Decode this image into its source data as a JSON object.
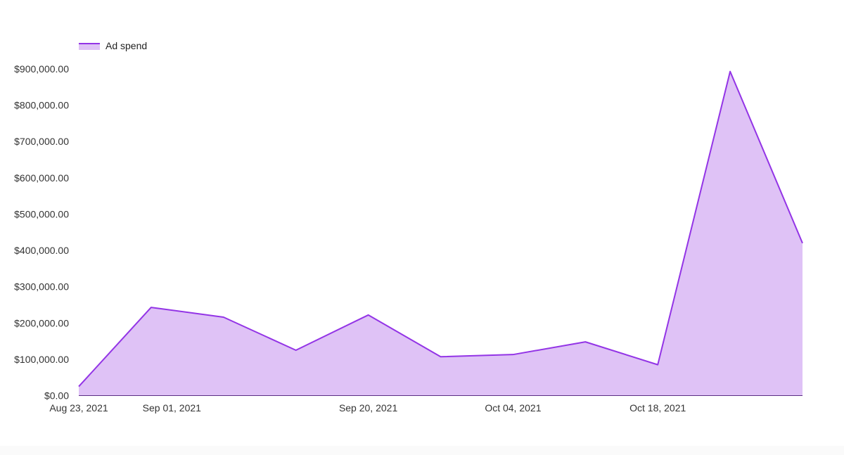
{
  "chart_data": {
    "type": "area",
    "series": [
      {
        "name": "Ad spend",
        "x": [
          "2021-08-23",
          "2021-08-30",
          "2021-09-06",
          "2021-09-13",
          "2021-09-20",
          "2021-09-27",
          "2021-10-04",
          "2021-10-11",
          "2021-10-18",
          "2021-10-25",
          "2021-11-01"
        ],
        "values": [
          25000,
          243000,
          216000,
          125000,
          222000,
          107000,
          113000,
          148000,
          85000,
          893000,
          420000
        ]
      }
    ],
    "y_ticks": [
      "$0.00",
      "$100,000.00",
      "$200,000.00",
      "$300,000.00",
      "$400,000.00",
      "$500,000.00",
      "$600,000.00",
      "$700,000.00",
      "$800,000.00",
      "$900,000.00"
    ],
    "y_tick_values": [
      0,
      100000,
      200000,
      300000,
      400000,
      500000,
      600000,
      700000,
      800000,
      900000
    ],
    "x_ticks": [
      {
        "label": "Aug 23, 2021",
        "date": "2021-08-23"
      },
      {
        "label": "Sep 01, 2021",
        "date": "2021-09-01"
      },
      {
        "label": "Sep 20, 2021",
        "date": "2021-09-20"
      },
      {
        "label": "Oct 04, 2021",
        "date": "2021-10-04"
      },
      {
        "label": "Oct 18, 2021",
        "date": "2021-10-18"
      }
    ],
    "ylim": [
      0,
      900000
    ],
    "xlim": [
      "2021-08-23",
      "2021-11-01"
    ],
    "legend_position": "top-left",
    "grid": false,
    "colors": {
      "line": "#9334e6",
      "fill": "#dfc2f6",
      "axis": "#5a2d82"
    }
  },
  "legend": {
    "label": "Ad spend"
  }
}
